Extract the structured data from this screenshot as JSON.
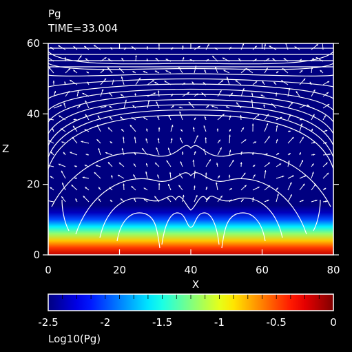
{
  "chart_data": {
    "type": "heatmap",
    "title": "Pg",
    "subtitle": "TIME=33.004",
    "xlabel": "X",
    "ylabel": "Z",
    "xlim": [
      0,
      80
    ],
    "ylim": [
      0,
      60
    ],
    "x_ticks": [
      0,
      20,
      40,
      60,
      80
    ],
    "y_ticks": [
      0,
      20,
      40,
      60
    ],
    "colorbar": {
      "label": "Log10(Pg)",
      "range": [
        -2.5,
        0
      ],
      "ticks": [
        -2.5,
        -2,
        -1.5,
        -1,
        -0.5,
        0
      ],
      "tick_labels": [
        "-2.5",
        "-2",
        "-1.5",
        "-1",
        "-0.5",
        "0"
      ],
      "colormap": "jet"
    },
    "density_profile": {
      "z": [
        0,
        2,
        4,
        6,
        8,
        10,
        12,
        14,
        40,
        60
      ],
      "log10_pg": [
        -0.15,
        -0.45,
        -0.8,
        -1.2,
        -1.6,
        -2.0,
        -2.35,
        -2.5,
        -2.5,
        -2.5
      ]
    },
    "overlays": {
      "field_lines_color": "#ffffff",
      "velocity_arrows_color": "#ffffff"
    }
  }
}
